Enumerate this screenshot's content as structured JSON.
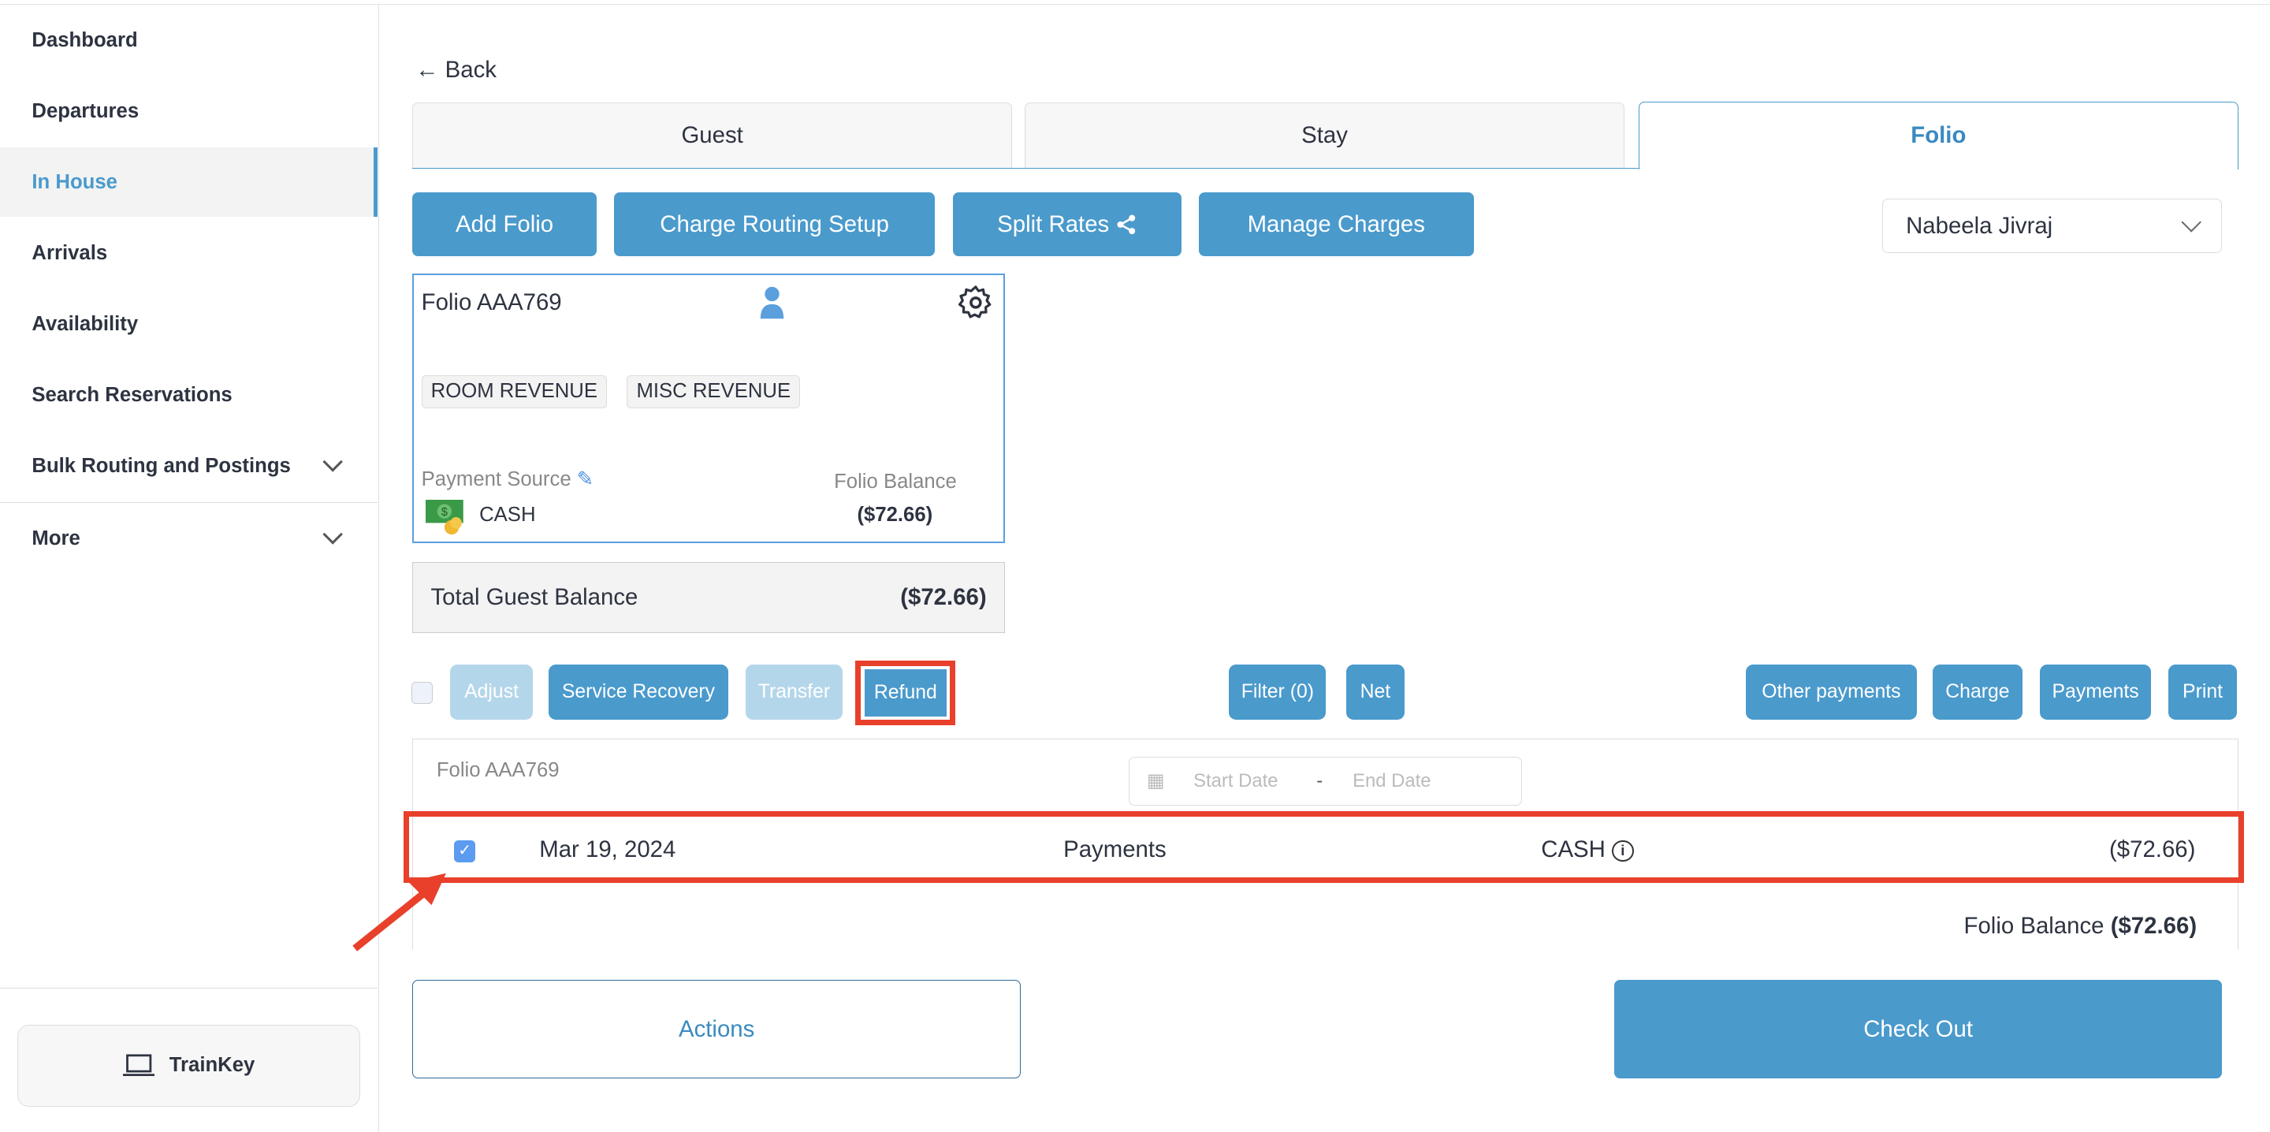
{
  "sidebar": {
    "items": [
      {
        "label": "Dashboard"
      },
      {
        "label": "Departures"
      },
      {
        "label": "In House",
        "active": true
      },
      {
        "label": "Arrivals"
      },
      {
        "label": "Availability"
      },
      {
        "label": "Search Reservations"
      },
      {
        "label": "Bulk Routing and Postings"
      },
      {
        "label": "More"
      }
    ],
    "trainkey": "TrainKey"
  },
  "back": "Back",
  "tabs": [
    {
      "label": "Guest"
    },
    {
      "label": "Stay"
    },
    {
      "label": "Folio",
      "active": true
    }
  ],
  "toolbar": {
    "add_folio": "Add Folio",
    "charge_routing": "Charge Routing Setup",
    "split_rates": "Split Rates",
    "manage_charges": "Manage Charges",
    "guest_select": "Nabeela Jivraj"
  },
  "folio_card": {
    "name": "Folio AAA769",
    "tags": [
      "ROOM REVENUE",
      "MISC REVENUE"
    ],
    "payment_source_label": "Payment Source",
    "payment_source": "CASH",
    "balance_label": "Folio Balance",
    "balance": "($72.66)"
  },
  "total": {
    "label": "Total Guest Balance",
    "value": "($72.66)"
  },
  "actions": {
    "adjust": "Adjust",
    "service_recovery": "Service Recovery",
    "transfer": "Transfer",
    "refund": "Refund",
    "filter": "Filter (0)",
    "net": "Net",
    "other_payments": "Other payments",
    "charge": "Charge",
    "payments": "Payments",
    "print": "Print"
  },
  "ledger": {
    "folio": "Folio AAA769",
    "start_placeholder": "Start Date",
    "end_placeholder": "End Date",
    "sep": "-",
    "rows": [
      {
        "date": "Mar 19, 2024",
        "type": "Payments",
        "method": "CASH",
        "amount": "($72.66)",
        "checked": true
      }
    ],
    "balance_label": "Folio Balance",
    "balance": "($72.66)"
  },
  "footer": {
    "actions": "Actions",
    "checkout": "Check Out"
  },
  "colors": {
    "accent": "#4a9acc",
    "highlight": "#e8402a"
  }
}
